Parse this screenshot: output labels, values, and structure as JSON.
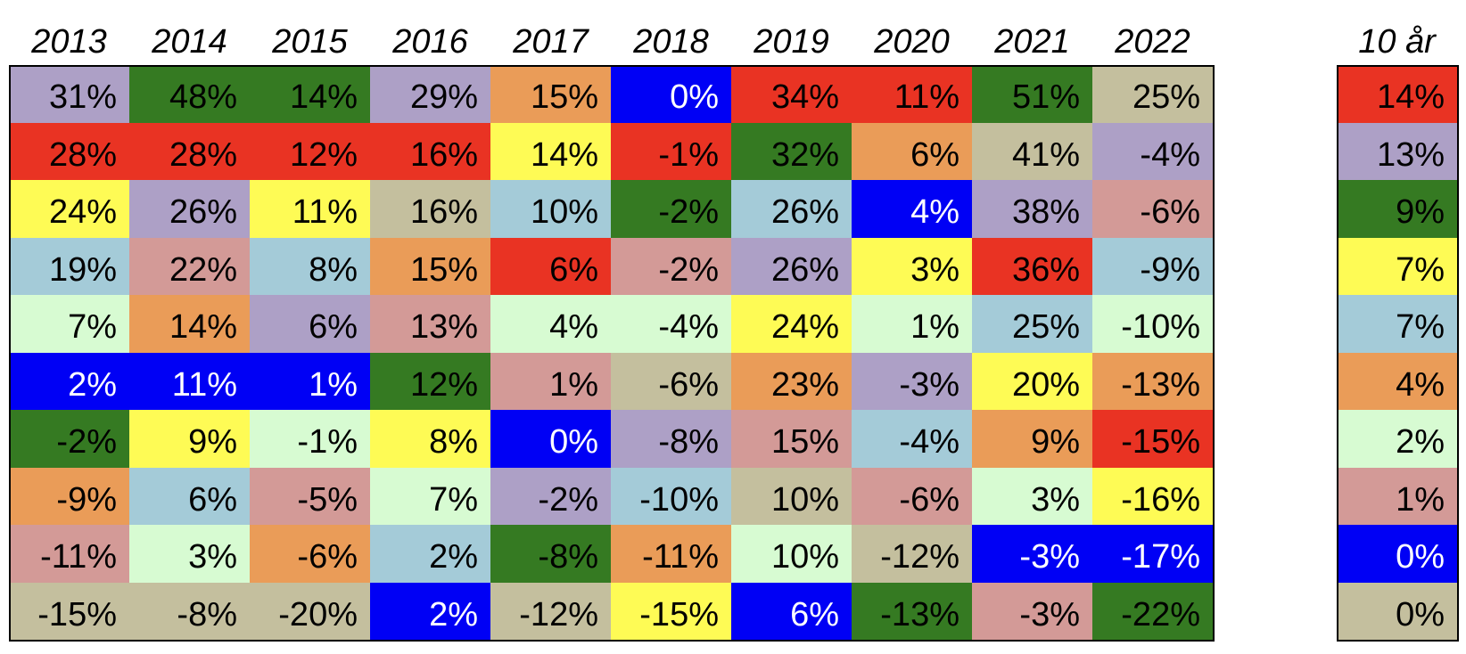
{
  "table": {
    "columns": [
      "2013",
      "2014",
      "2015",
      "2016",
      "2017",
      "2018",
      "2019",
      "2020",
      "2021",
      "2022"
    ],
    "summary_header": "10 år",
    "rows": [
      [
        {
          "text": "31%",
          "color": "#ada0c6"
        },
        {
          "text": "48%",
          "color": "#357a22"
        },
        {
          "text": "14%",
          "color": "#357a22"
        },
        {
          "text": "29%",
          "color": "#ada0c6"
        },
        {
          "text": "15%",
          "color": "#ea9c58"
        },
        {
          "text": "0%",
          "color": "#0000f5"
        },
        {
          "text": "34%",
          "color": "#e93323"
        },
        {
          "text": "11%",
          "color": "#e93323"
        },
        {
          "text": "51%",
          "color": "#357a22"
        },
        {
          "text": "25%",
          "color": "#c4bf9e"
        }
      ],
      [
        {
          "text": "28%",
          "color": "#e93323"
        },
        {
          "text": "28%",
          "color": "#e93323"
        },
        {
          "text": "12%",
          "color": "#e93323"
        },
        {
          "text": "16%",
          "color": "#e93323"
        },
        {
          "text": "14%",
          "color": "#fefb55"
        },
        {
          "text": "-1%",
          "color": "#e93323"
        },
        {
          "text": "32%",
          "color": "#357a22"
        },
        {
          "text": "6%",
          "color": "#ea9c58"
        },
        {
          "text": "41%",
          "color": "#c4bf9e"
        },
        {
          "text": "-4%",
          "color": "#ada0c6"
        }
      ],
      [
        {
          "text": "24%",
          "color": "#fefb55"
        },
        {
          "text": "26%",
          "color": "#ada0c6"
        },
        {
          "text": "11%",
          "color": "#fefb55"
        },
        {
          "text": "16%",
          "color": "#c4bf9e"
        },
        {
          "text": "10%",
          "color": "#a4cbd8"
        },
        {
          "text": "-2%",
          "color": "#357a22"
        },
        {
          "text": "26%",
          "color": "#a4cbd8"
        },
        {
          "text": "4%",
          "color": "#0000f5"
        },
        {
          "text": "38%",
          "color": "#ada0c6"
        },
        {
          "text": "-6%",
          "color": "#d39a97"
        }
      ],
      [
        {
          "text": "19%",
          "color": "#a4cbd8"
        },
        {
          "text": "22%",
          "color": "#d39a97"
        },
        {
          "text": "8%",
          "color": "#a4cbd8"
        },
        {
          "text": "15%",
          "color": "#ea9c58"
        },
        {
          "text": "6%",
          "color": "#e93323"
        },
        {
          "text": "-2%",
          "color": "#d39a97"
        },
        {
          "text": "26%",
          "color": "#ada0c6"
        },
        {
          "text": "3%",
          "color": "#fefb55"
        },
        {
          "text": "36%",
          "color": "#e93323"
        },
        {
          "text": "-9%",
          "color": "#a4cbd8"
        }
      ],
      [
        {
          "text": "7%",
          "color": "#d7fbd2"
        },
        {
          "text": "14%",
          "color": "#ea9c58"
        },
        {
          "text": "6%",
          "color": "#ada0c6"
        },
        {
          "text": "13%",
          "color": "#d39a97"
        },
        {
          "text": "4%",
          "color": "#d7fbd2"
        },
        {
          "text": "-4%",
          "color": "#d7fbd2"
        },
        {
          "text": "24%",
          "color": "#fefb55"
        },
        {
          "text": "1%",
          "color": "#d7fbd2"
        },
        {
          "text": "25%",
          "color": "#a4cbd8"
        },
        {
          "text": "-10%",
          "color": "#d7fbd2"
        }
      ],
      [
        {
          "text": "2%",
          "color": "#0000f5"
        },
        {
          "text": "11%",
          "color": "#0000f5"
        },
        {
          "text": "1%",
          "color": "#0000f5"
        },
        {
          "text": "12%",
          "color": "#357a22"
        },
        {
          "text": "1%",
          "color": "#d39a97"
        },
        {
          "text": "-6%",
          "color": "#c4bf9e"
        },
        {
          "text": "23%",
          "color": "#ea9c58"
        },
        {
          "text": "-3%",
          "color": "#ada0c6"
        },
        {
          "text": "20%",
          "color": "#fefb55"
        },
        {
          "text": "-13%",
          "color": "#ea9c58"
        }
      ],
      [
        {
          "text": "-2%",
          "color": "#357a22"
        },
        {
          "text": "9%",
          "color": "#fefb55"
        },
        {
          "text": "-1%",
          "color": "#d7fbd2"
        },
        {
          "text": "8%",
          "color": "#fefb55"
        },
        {
          "text": "0%",
          "color": "#0000f5"
        },
        {
          "text": "-8%",
          "color": "#ada0c6"
        },
        {
          "text": "15%",
          "color": "#d39a97"
        },
        {
          "text": "-4%",
          "color": "#a4cbd8"
        },
        {
          "text": "9%",
          "color": "#ea9c58"
        },
        {
          "text": "-15%",
          "color": "#e93323"
        }
      ],
      [
        {
          "text": "-9%",
          "color": "#ea9c58"
        },
        {
          "text": "6%",
          "color": "#a4cbd8"
        },
        {
          "text": "-5%",
          "color": "#d39a97"
        },
        {
          "text": "7%",
          "color": "#d7fbd2"
        },
        {
          "text": "-2%",
          "color": "#ada0c6"
        },
        {
          "text": "-10%",
          "color": "#a4cbd8"
        },
        {
          "text": "10%",
          "color": "#c4bf9e"
        },
        {
          "text": "-6%",
          "color": "#d39a97"
        },
        {
          "text": "3%",
          "color": "#d7fbd2"
        },
        {
          "text": "-16%",
          "color": "#fefb55"
        }
      ],
      [
        {
          "text": "-11%",
          "color": "#d39a97"
        },
        {
          "text": "3%",
          "color": "#d7fbd2"
        },
        {
          "text": "-6%",
          "color": "#ea9c58"
        },
        {
          "text": "2%",
          "color": "#a4cbd8"
        },
        {
          "text": "-8%",
          "color": "#357a22"
        },
        {
          "text": "-11%",
          "color": "#ea9c58"
        },
        {
          "text": "10%",
          "color": "#d7fbd2"
        },
        {
          "text": "-12%",
          "color": "#c4bf9e"
        },
        {
          "text": "-3%",
          "color": "#0000f5"
        },
        {
          "text": "-17%",
          "color": "#0000f5"
        }
      ],
      [
        {
          "text": "-15%",
          "color": "#c4bf9e"
        },
        {
          "text": "-8%",
          "color": "#c4bf9e"
        },
        {
          "text": "-20%",
          "color": "#c4bf9e"
        },
        {
          "text": "2%",
          "color": "#0000f5"
        },
        {
          "text": "-12%",
          "color": "#c4bf9e"
        },
        {
          "text": "-15%",
          "color": "#fefb55"
        },
        {
          "text": "6%",
          "color": "#0000f5"
        },
        {
          "text": "-13%",
          "color": "#357a22"
        },
        {
          "text": "-3%",
          "color": "#d39a97"
        },
        {
          "text": "-22%",
          "color": "#357a22"
        }
      ]
    ],
    "summary": [
      {
        "text": "14%",
        "color": "#e93323"
      },
      {
        "text": "13%",
        "color": "#ada0c6"
      },
      {
        "text": "9%",
        "color": "#357a22"
      },
      {
        "text": "7%",
        "color": "#fefb55"
      },
      {
        "text": "7%",
        "color": "#a4cbd8"
      },
      {
        "text": "4%",
        "color": "#ea9c58"
      },
      {
        "text": "2%",
        "color": "#d7fbd2"
      },
      {
        "text": "1%",
        "color": "#d39a97"
      },
      {
        "text": "0%",
        "color": "#0000f5"
      },
      {
        "text": "0%",
        "color": "#c4bf9e"
      }
    ]
  }
}
